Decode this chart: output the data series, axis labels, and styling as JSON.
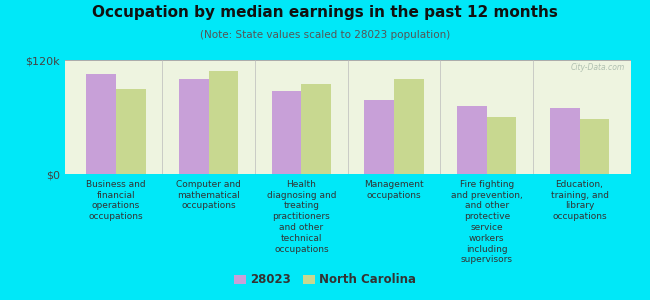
{
  "title": "Occupation by median earnings in the past 12 months",
  "subtitle": "(Note: State values scaled to 28023 population)",
  "background_color": "#00e8f8",
  "plot_bg_color": "#eef4e0",
  "categories": [
    "Business and\nfinancial\noperations\noccupations",
    "Computer and\nmathematical\noccupations",
    "Health\ndiagnosing and\ntreating\npractitioners\nand other\ntechnical\noccupations",
    "Management\noccupations",
    "Fire fighting\nand prevention,\nand other\nprotective\nservice\nworkers\nincluding\nsupervisors",
    "Education,\ntraining, and\nlibrary\noccupations"
  ],
  "values_28023": [
    105000,
    100000,
    87000,
    78000,
    72000,
    70000
  ],
  "values_nc": [
    90000,
    108000,
    95000,
    100000,
    60000,
    58000
  ],
  "color_28023": "#c8a0d8",
  "color_nc": "#c8d890",
  "ylim": [
    0,
    120000
  ],
  "yticks": [
    0,
    120000
  ],
  "ytick_labels": [
    "$0",
    "$120k"
  ],
  "legend_labels": [
    "28023",
    "North Carolina"
  ],
  "watermark": "City-Data.com"
}
